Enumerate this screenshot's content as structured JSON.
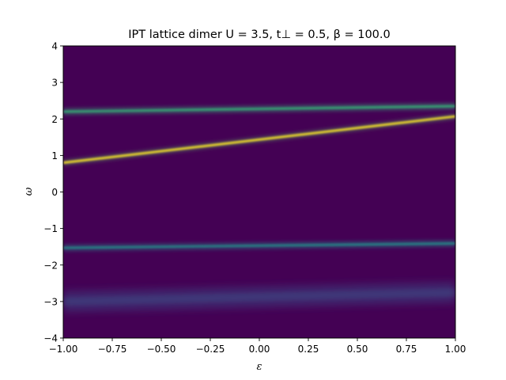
{
  "chart_data": {
    "type": "heatmap",
    "title": "IPT lattice dimer U = 3.5, t⊥ = 0.5, β = 100.0",
    "xlabel": "ε",
    "ylabel": "ω",
    "xlim": [
      -1.0,
      1.0
    ],
    "ylim": [
      -4,
      4
    ],
    "xticks": [
      -1.0,
      -0.75,
      -0.5,
      -0.25,
      0.0,
      0.25,
      0.5,
      0.75,
      1.0
    ],
    "xtick_labels": [
      "−1.00",
      "−0.75",
      "−0.50",
      "−0.25",
      "0.00",
      "0.25",
      "0.50",
      "0.75",
      "1.00"
    ],
    "yticks": [
      -4,
      -3,
      -2,
      -1,
      0,
      1,
      2,
      3,
      4
    ],
    "ytick_labels": [
      "−4",
      "−3",
      "−2",
      "−1",
      "0",
      "1",
      "2",
      "3",
      "4"
    ],
    "colormap": "viridis",
    "background_color": "#440154",
    "bands": [
      {
        "x": [
          -1.0,
          1.0
        ],
        "y": [
          0.8,
          2.07
        ],
        "intensity": "high",
        "color": "#fde725"
      },
      {
        "x": [
          -1.0,
          1.0
        ],
        "y": [
          2.2,
          2.35
        ],
        "intensity": "medium",
        "color": "#35b779"
      },
      {
        "x": [
          -1.0,
          1.0
        ],
        "y": [
          -1.53,
          -1.41
        ],
        "intensity": "medium",
        "color": "#21918c"
      },
      {
        "x": [
          -1.0,
          1.0
        ],
        "y": [
          -3.0,
          -2.75
        ],
        "intensity": "low",
        "color": "#3b528b"
      }
    ]
  }
}
